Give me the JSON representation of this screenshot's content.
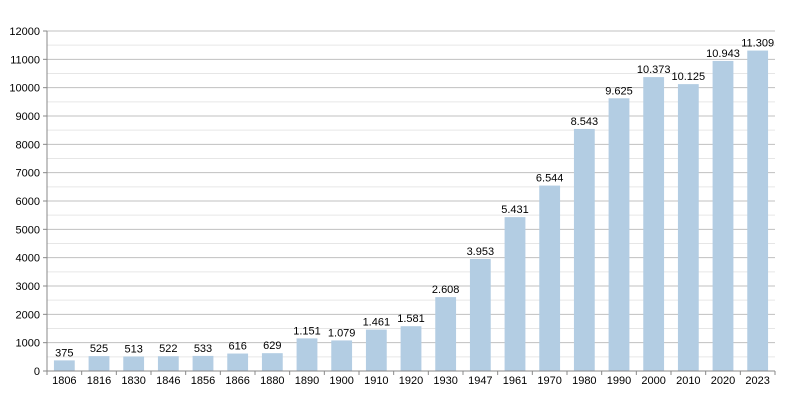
{
  "chart_data": {
    "type": "bar",
    "categories": [
      "1806",
      "1816",
      "1830",
      "1846",
      "1856",
      "1866",
      "1880",
      "1890",
      "1900",
      "1910",
      "1920",
      "1930",
      "1947",
      "1961",
      "1970",
      "1980",
      "1990",
      "2000",
      "2010",
      "2020",
      "2023"
    ],
    "values": [
      375,
      525,
      513,
      522,
      533,
      616,
      629,
      1151,
      1079,
      1461,
      1581,
      2608,
      3953,
      5431,
      6544,
      8543,
      9625,
      10373,
      10125,
      10943,
      11309
    ],
    "value_labels": [
      "375",
      "525",
      "513",
      "522",
      "533",
      "616",
      "629",
      "1.151",
      "1.079",
      "1.461",
      "1.581",
      "2.608",
      "3.953",
      "5.431",
      "6.544",
      "8.543",
      "9.625",
      "10.373",
      "10.125",
      "10.943",
      "11.309"
    ],
    "y_ticks": [
      0,
      1000,
      2000,
      3000,
      4000,
      5000,
      6000,
      7000,
      8000,
      9000,
      10000,
      11000,
      12000
    ],
    "ylim": [
      0,
      12000
    ],
    "title": "",
    "xlabel": "",
    "ylabel": "",
    "grid": true,
    "colors": {
      "bar": "#b3cde3",
      "grid": "#c0c0c0",
      "axis": "#888888"
    }
  }
}
